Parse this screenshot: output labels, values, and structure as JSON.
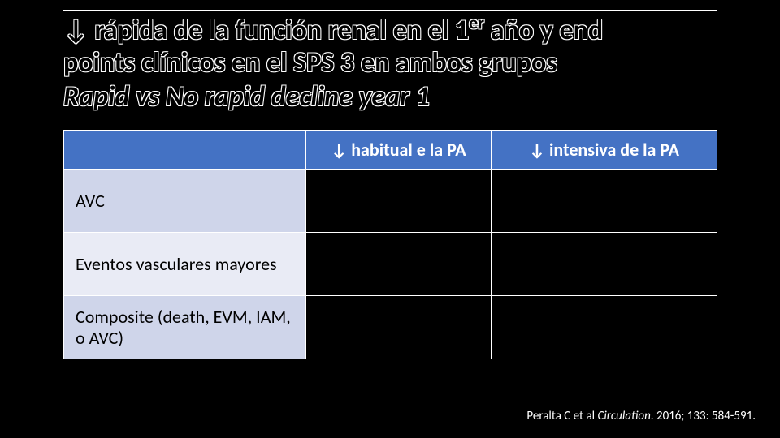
{
  "title": {
    "line1_pre": "↓ rápida de la función renal en el 1",
    "line1_sup": "er",
    "line1_post": " año y end",
    "line2": "points clínicos en el SPS 3 en ambos grupos",
    "line3": "Rapid  vs No rapid decline year 1"
  },
  "table": {
    "header_blank": "",
    "header_col_a": "↓ habitual e la PA",
    "header_col_b": "↓ intensiva  de la PA",
    "rows": [
      {
        "label": "AVC"
      },
      {
        "label": "Eventos vasculares mayores"
      },
      {
        "label": "Composite (death, EVM, IAM, o AVC)"
      }
    ]
  },
  "citation": {
    "authors": "Peralta C et al ",
    "journal": "Circulation",
    "rest": ". 2016; 133: 584-591."
  },
  "colors": {
    "background": "#000000",
    "header_fill": "#4472c4",
    "row_odd": "#cfd5ea",
    "row_even": "#e9ebf5",
    "border": "#ffffff",
    "title_outline": "#ffffff"
  }
}
